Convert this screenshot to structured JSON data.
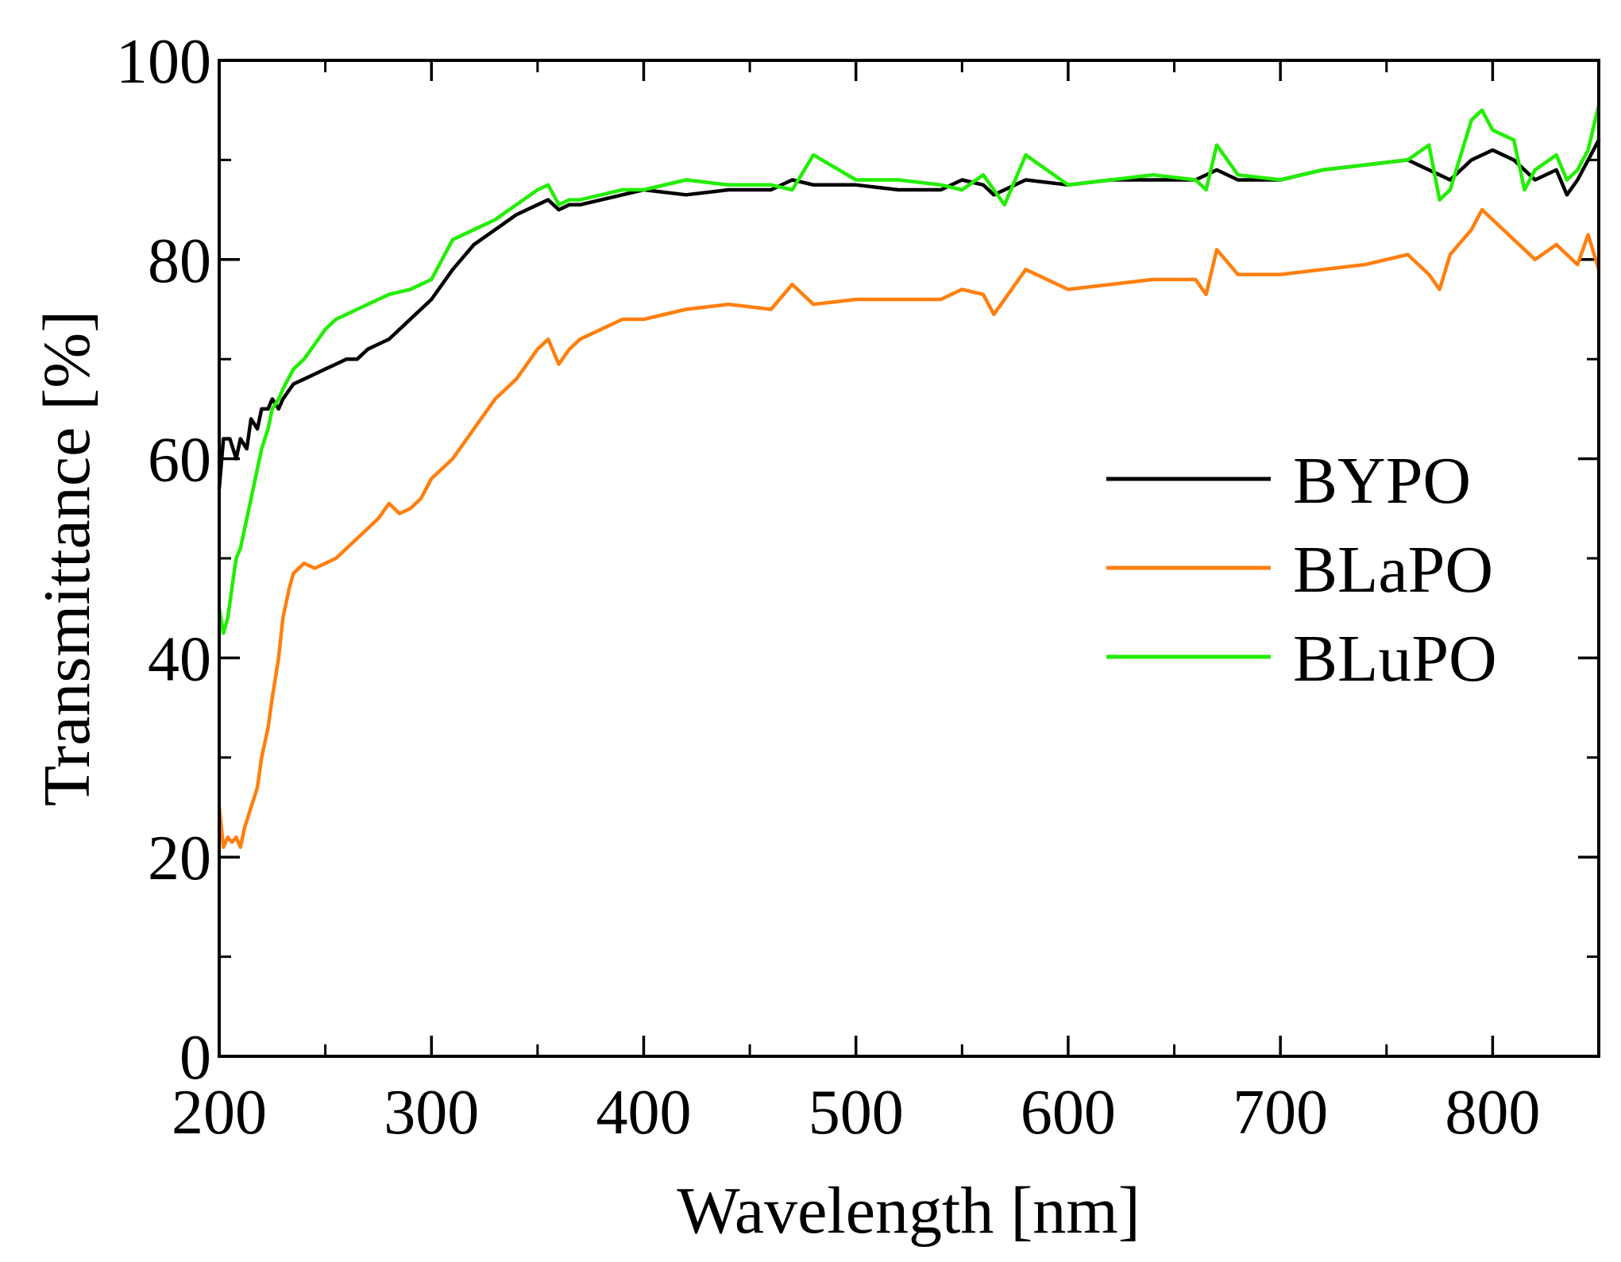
{
  "chart_data": {
    "type": "line",
    "title": "",
    "xlabel": "Wavelength [nm]",
    "ylabel": "Transmittance [%]",
    "xlim": [
      200,
      850
    ],
    "ylim": [
      0,
      100
    ],
    "x_ticks": [
      200,
      300,
      400,
      500,
      600,
      700,
      800
    ],
    "x_minor_ticks": [
      250,
      350,
      450,
      550,
      650,
      750
    ],
    "y_ticks": [
      0,
      20,
      40,
      60,
      80,
      100
    ],
    "y_minor_ticks": [
      10,
      30,
      50,
      70,
      90
    ],
    "grid": false,
    "legend_position": "middle-right",
    "series": [
      {
        "name": "BYPO",
        "color": "#000000",
        "x": [
          200,
          202,
          205,
          208,
          210,
          213,
          215,
          218,
          220,
          223,
          225,
          228,
          230,
          235,
          240,
          245,
          250,
          255,
          260,
          265,
          270,
          275,
          280,
          290,
          300,
          310,
          320,
          330,
          340,
          350,
          355,
          360,
          365,
          370,
          380,
          390,
          400,
          420,
          440,
          460,
          470,
          480,
          500,
          520,
          540,
          550,
          560,
          565,
          580,
          600,
          620,
          640,
          660,
          670,
          680,
          700,
          720,
          740,
          760,
          770,
          780,
          790,
          800,
          810,
          820,
          830,
          835,
          840,
          850
        ],
        "y": [
          57,
          62,
          62,
          60,
          62,
          61,
          64,
          63,
          65,
          65,
          66,
          65,
          66,
          67.5,
          68,
          68.5,
          69,
          69.5,
          70,
          70,
          71,
          71.5,
          72,
          74,
          76,
          79,
          81.5,
          83,
          84.5,
          85.5,
          86,
          85,
          85.5,
          85.5,
          86,
          86.5,
          87,
          86.5,
          87,
          87,
          88,
          87.5,
          87.5,
          87,
          87,
          88,
          87.5,
          86.5,
          88,
          87.5,
          88,
          88,
          88,
          89,
          88,
          88,
          89,
          89.5,
          90,
          89,
          88,
          90,
          91,
          90,
          88,
          89,
          86.5,
          88,
          92
        ]
      },
      {
        "name": "BLaPO",
        "color": "#ff7f0e",
        "x": [
          200,
          202,
          204,
          206,
          208,
          210,
          212,
          215,
          218,
          220,
          223,
          225,
          228,
          230,
          233,
          235,
          240,
          245,
          250,
          255,
          260,
          265,
          270,
          275,
          280,
          285,
          290,
          295,
          300,
          310,
          320,
          330,
          340,
          350,
          355,
          360,
          365,
          370,
          380,
          390,
          400,
          420,
          440,
          460,
          470,
          480,
          500,
          520,
          540,
          550,
          560,
          565,
          570,
          580,
          600,
          620,
          640,
          660,
          665,
          670,
          680,
          700,
          720,
          740,
          760,
          770,
          775,
          780,
          790,
          795,
          800,
          810,
          820,
          830,
          840,
          845,
          850
        ],
        "y": [
          25,
          21,
          22,
          21.5,
          22,
          21,
          23,
          25,
          27,
          30,
          33,
          36,
          40,
          44,
          47,
          48.5,
          49.5,
          49,
          49.5,
          50,
          51,
          52,
          53,
          54,
          55.5,
          54.5,
          55,
          56,
          58,
          60,
          63,
          66,
          68,
          71,
          72,
          69.5,
          71,
          72,
          73,
          74,
          74,
          75,
          75.5,
          75,
          77.5,
          75.5,
          76,
          76,
          76,
          77,
          76.5,
          74.5,
          76,
          79,
          77,
          77.5,
          78,
          78,
          76.5,
          81,
          78.5,
          78.5,
          79,
          79.5,
          80.5,
          78.5,
          77,
          80.5,
          83,
          85,
          84,
          82,
          80,
          81.5,
          79.5,
          82.5,
          79
        ]
      },
      {
        "name": "BLuPO",
        "color": "#22ee00",
        "x": [
          200,
          202,
          204,
          206,
          208,
          210,
          212,
          215,
          218,
          220,
          223,
          225,
          228,
          230,
          235,
          240,
          245,
          250,
          255,
          260,
          265,
          270,
          275,
          280,
          290,
          300,
          310,
          320,
          330,
          340,
          350,
          355,
          360,
          365,
          370,
          380,
          390,
          400,
          420,
          440,
          460,
          470,
          480,
          500,
          520,
          540,
          550,
          560,
          565,
          570,
          580,
          600,
          620,
          640,
          660,
          665,
          670,
          680,
          700,
          720,
          740,
          760,
          770,
          775,
          780,
          790,
          795,
          800,
          810,
          815,
          820,
          830,
          835,
          840,
          845,
          850
        ],
        "y": [
          45,
          42.5,
          44,
          47,
          50,
          51,
          53,
          56,
          59,
          61,
          63,
          65,
          66,
          67,
          69,
          70,
          71.5,
          73,
          74,
          74.5,
          75,
          75.5,
          76,
          76.5,
          77,
          78,
          82,
          83,
          84,
          85.5,
          87,
          87.5,
          85.5,
          86,
          86,
          86.5,
          87,
          87,
          88,
          87.5,
          87.5,
          87,
          90.5,
          88,
          88,
          87.5,
          87,
          88.5,
          87,
          85.5,
          90.5,
          87.5,
          88,
          88.5,
          88,
          87,
          91.5,
          88.5,
          88,
          89,
          89.5,
          90,
          91.5,
          86,
          87,
          94,
          95,
          93,
          92,
          87,
          89,
          90.5,
          88,
          89,
          91,
          95.5
        ]
      }
    ]
  }
}
